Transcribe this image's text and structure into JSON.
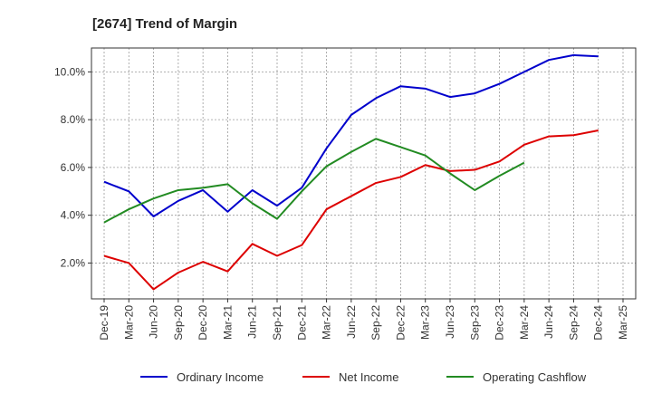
{
  "chart_data": {
    "type": "line",
    "title": "[2674]  Trend of Margin",
    "xlabel": "",
    "ylabel": "",
    "x": [
      "Dec-19",
      "Mar-20",
      "Jun-20",
      "Sep-20",
      "Dec-20",
      "Mar-21",
      "Jun-21",
      "Sep-21",
      "Dec-21",
      "Mar-22",
      "Jun-22",
      "Sep-22",
      "Dec-22",
      "Mar-23",
      "Jun-23",
      "Sep-23",
      "Dec-23",
      "Mar-24",
      "Jun-24",
      "Sep-24",
      "Dec-24",
      "Mar-25"
    ],
    "ylim": [
      0.5,
      11.0
    ],
    "yticks": [
      2.0,
      4.0,
      6.0,
      8.0,
      10.0
    ],
    "ytick_labels": [
      "2.0%",
      "4.0%",
      "6.0%",
      "8.0%",
      "10.0%"
    ],
    "grid": true,
    "legend_position": "bottom",
    "series": [
      {
        "name": "Ordinary Income",
        "color": "#0000cc",
        "values": [
          5.4,
          5.0,
          3.95,
          4.6,
          5.05,
          4.15,
          5.05,
          4.4,
          5.15,
          6.8,
          8.2,
          8.9,
          9.4,
          9.3,
          8.95,
          9.1,
          9.5,
          10.0,
          10.5,
          10.7,
          10.65,
          null
        ]
      },
      {
        "name": "Net Income",
        "color": "#dd0000",
        "values": [
          2.3,
          2.0,
          0.9,
          1.6,
          2.05,
          1.65,
          2.8,
          2.3,
          2.75,
          4.25,
          4.8,
          5.35,
          5.6,
          6.1,
          5.85,
          5.9,
          6.25,
          6.95,
          7.3,
          7.35,
          7.55,
          null
        ]
      },
      {
        "name": "Operating Cashflow",
        "color": "#228b22",
        "values": [
          3.7,
          4.25,
          4.7,
          5.05,
          5.15,
          5.3,
          4.5,
          3.85,
          5.0,
          6.05,
          6.65,
          7.2,
          6.85,
          6.5,
          5.75,
          5.05,
          5.65,
          6.2,
          null,
          null,
          null,
          null
        ]
      }
    ]
  }
}
